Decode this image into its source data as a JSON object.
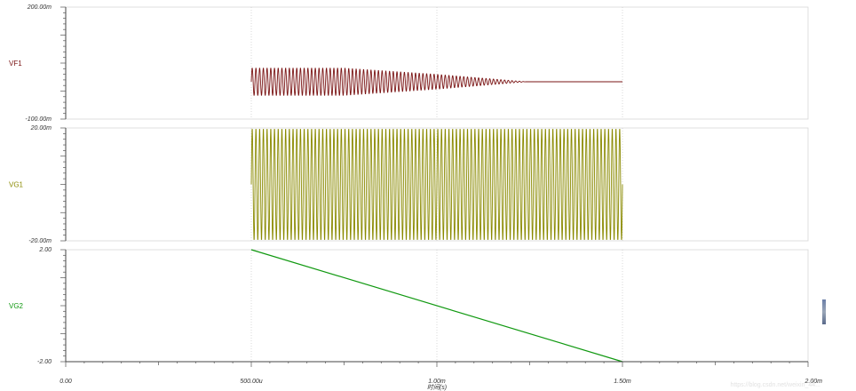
{
  "chart_data": [
    {
      "type": "line",
      "series": [
        {
          "name": "VF1",
          "color": "#7a1414",
          "description": "burst from t=500u to ~1.24m, envelope constant ~±37m to ~750u, then decaying to 0; flat at 0 until 1.5m"
        }
      ],
      "ylim": [
        -100,
        200
      ],
      "ytick_labels": [
        "200.00m",
        "-100.00m"
      ],
      "x": [
        0.5,
        0.75,
        1.0,
        1.24,
        1.5
      ],
      "envelope": [
        37,
        37,
        20,
        0,
        0
      ]
    },
    {
      "type": "line",
      "series": [
        {
          "name": "VG1",
          "color": "#8a8a00",
          "description": "full-scale oscillation between ±20m from t=500u to 1.5m"
        }
      ],
      "ylim": [
        -20,
        20
      ],
      "ytick_labels": [
        "20.00m",
        "-20.00m"
      ],
      "x": [
        0.5,
        1.5
      ],
      "amplitude": 20
    },
    {
      "type": "line",
      "series": [
        {
          "name": "VG2",
          "color": "#119911"
        }
      ],
      "ylim": [
        -2,
        2
      ],
      "ytick_labels": [
        "2.00",
        "-2.00"
      ],
      "x": [
        0.5,
        1.5
      ],
      "values": [
        2.0,
        -2.0
      ]
    }
  ],
  "x_axis": {
    "ticks": [
      0,
      0.5,
      1.0,
      1.5,
      2.0
    ],
    "tick_labels": [
      "0.00",
      "500.00u",
      "1.00m",
      "1.50m",
      "2.00m"
    ],
    "label": "时间(s)",
    "xlim": [
      0,
      2.0
    ]
  },
  "watermark": "https://blog.csdn.net/weixin_44..."
}
